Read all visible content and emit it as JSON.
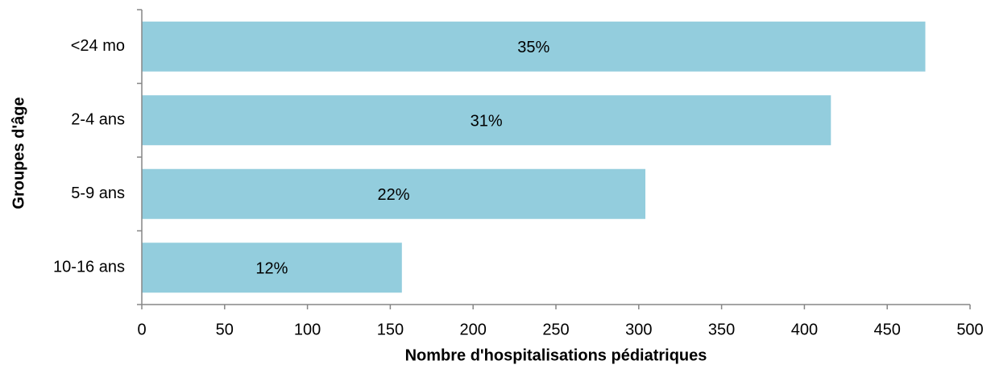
{
  "chart_data": {
    "type": "barh",
    "xlabel": "Nombre d'hospitalisations pédiatriques",
    "ylabel": "Groupes d'âge",
    "categories": [
      "<24 mo",
      "2-4 ans",
      "5-9 ans",
      "10-16 ans"
    ],
    "values": [
      473,
      416,
      304,
      157
    ],
    "bar_labels": [
      "35%",
      "31%",
      "22%",
      "12%"
    ],
    "color": "#93cddd",
    "xlim": [
      0,
      500
    ],
    "xticks": [
      0,
      50,
      100,
      150,
      200,
      250,
      300,
      350,
      400,
      450,
      500
    ],
    "grid": false
  }
}
